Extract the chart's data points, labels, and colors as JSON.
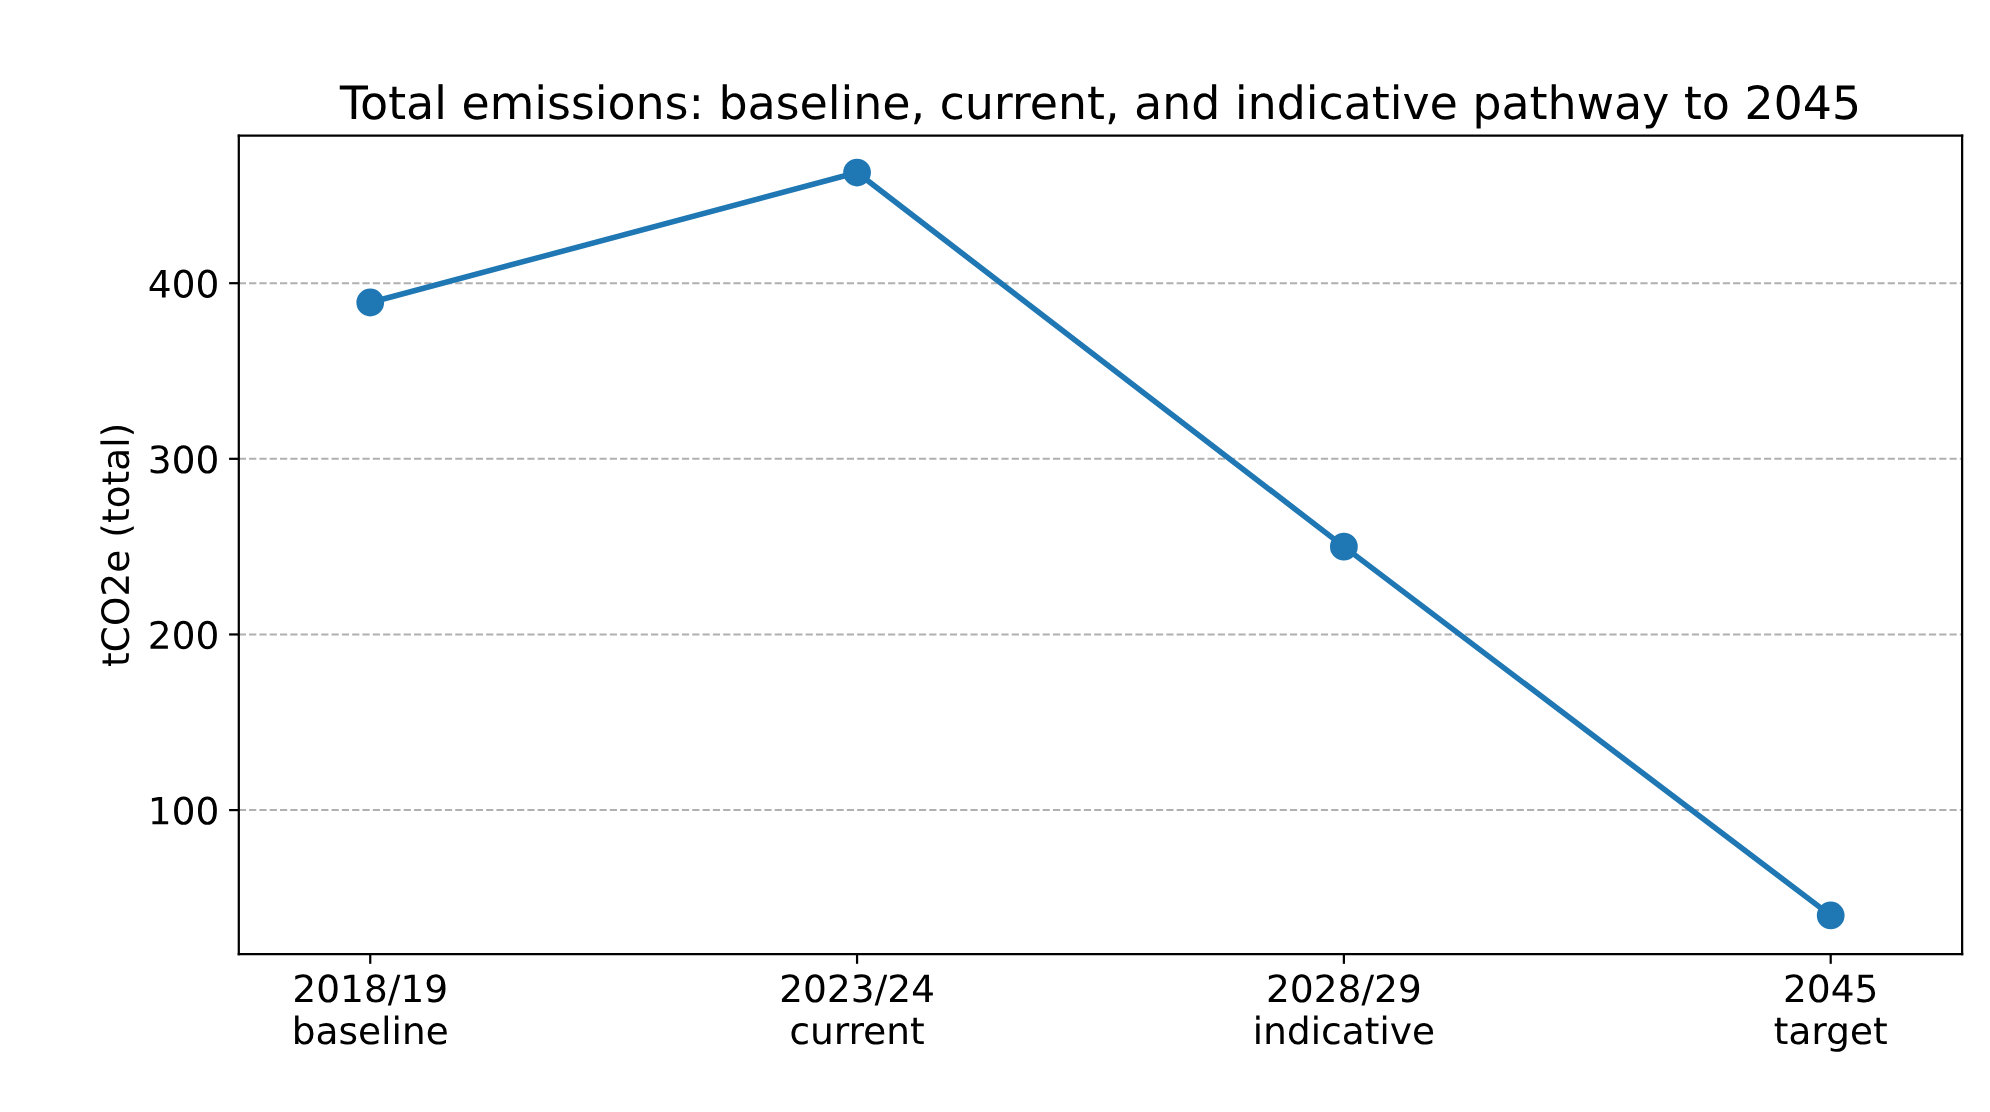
{
  "chart_data": {
    "type": "line",
    "title": "Total emissions: baseline, current, and indicative pathway to 2045",
    "ylabel": "tCO2e (total)",
    "categories": [
      "2018/19\nbaseline",
      "2023/24\ncurrent",
      "2028/29\nindicative",
      "2045\ntarget"
    ],
    "series": [
      {
        "color": "#1f77b4",
        "values": [
          389,
          463,
          250,
          40
        ]
      }
    ],
    "ylim": [
      18,
      484
    ],
    "yticks": [
      100,
      200,
      300,
      400
    ],
    "grid": "y",
    "marker": "circle",
    "line_style": "solid"
  }
}
